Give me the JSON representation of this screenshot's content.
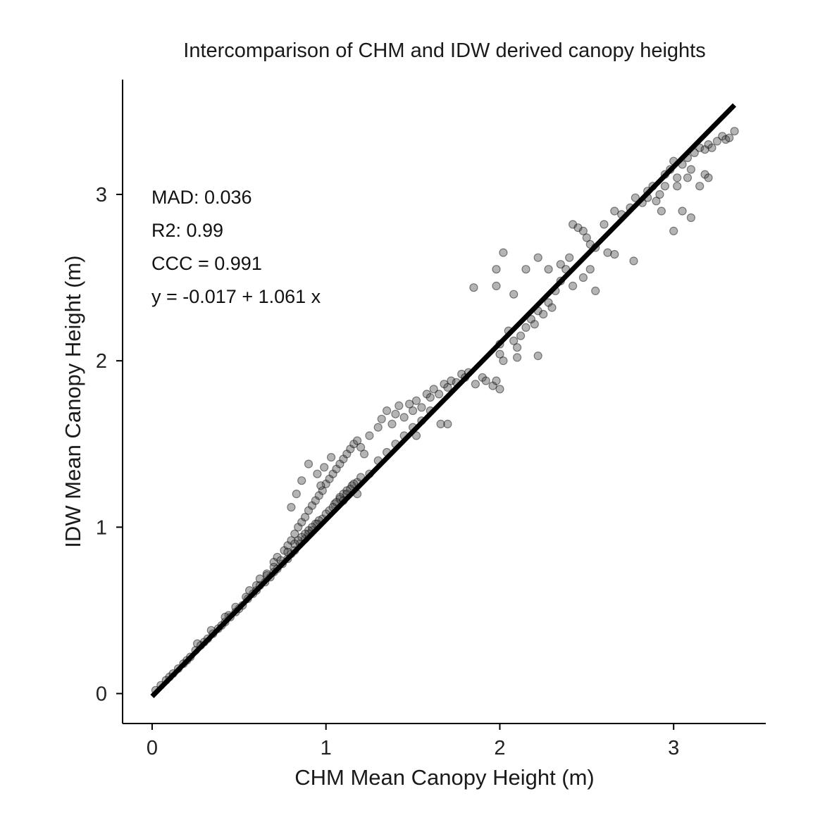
{
  "chart_data": {
    "type": "scatter",
    "title": "Intercomparison of CHM and IDW derived canopy heights",
    "xlabel": "CHM Mean Canopy Height (m)",
    "ylabel": "IDW Mean Canopy Height (m)",
    "xlim": [
      -0.17,
      3.53
    ],
    "ylim": [
      -0.18,
      3.69
    ],
    "xticks": [
      0,
      1,
      2,
      3
    ],
    "yticks": [
      0,
      1,
      2,
      3
    ],
    "xtick_labels": [
      "0",
      "1",
      "2",
      "3"
    ],
    "ytick_labels": [
      "0",
      "1",
      "2",
      "3"
    ],
    "grid": false,
    "annotations": [
      "MAD: 0.036",
      "R2: 0.99",
      "CCC =  0.991",
      "y =  -0.017 + 1.061 x"
    ],
    "fit_line": {
      "intercept": -0.017,
      "slope": 1.061,
      "x_range": [
        0.0,
        3.35
      ]
    },
    "point_color": "#444444",
    "point_opacity": 0.4,
    "line_color": "#000000",
    "points": [
      [
        0.02,
        0.02
      ],
      [
        0.05,
        0.05
      ],
      [
        0.08,
        0.08
      ],
      [
        0.1,
        0.1
      ],
      [
        0.12,
        0.12
      ],
      [
        0.15,
        0.15
      ],
      [
        0.18,
        0.18
      ],
      [
        0.2,
        0.2
      ],
      [
        0.22,
        0.22
      ],
      [
        0.25,
        0.26
      ],
      [
        0.28,
        0.29
      ],
      [
        0.3,
        0.31
      ],
      [
        0.32,
        0.33
      ],
      [
        0.35,
        0.36
      ],
      [
        0.38,
        0.39
      ],
      [
        0.4,
        0.41
      ],
      [
        0.42,
        0.43
      ],
      [
        0.45,
        0.46
      ],
      [
        0.48,
        0.49
      ],
      [
        0.5,
        0.51
      ],
      [
        0.52,
        0.53
      ],
      [
        0.55,
        0.57
      ],
      [
        0.58,
        0.6
      ],
      [
        0.6,
        0.62
      ],
      [
        0.62,
        0.65
      ],
      [
        0.65,
        0.67
      ],
      [
        0.68,
        0.7
      ],
      [
        0.7,
        0.73
      ],
      [
        0.72,
        0.75
      ],
      [
        0.75,
        0.78
      ],
      [
        0.78,
        0.81
      ],
      [
        0.8,
        0.84
      ],
      [
        0.82,
        0.86
      ],
      [
        0.85,
        0.9
      ],
      [
        0.88,
        0.93
      ],
      [
        0.9,
        0.96
      ],
      [
        0.92,
        0.98
      ],
      [
        0.95,
        1.02
      ],
      [
        0.98,
        1.05
      ],
      [
        1.0,
        1.08
      ],
      [
        1.02,
        1.1
      ],
      [
        1.05,
        1.14
      ],
      [
        1.08,
        1.17
      ],
      [
        1.1,
        1.2
      ],
      [
        1.12,
        1.22
      ],
      [
        1.15,
        1.25
      ],
      [
        1.18,
        1.27
      ],
      [
        1.2,
        1.3
      ],
      [
        0.26,
        0.3
      ],
      [
        0.34,
        0.38
      ],
      [
        0.44,
        0.47
      ],
      [
        0.56,
        0.62
      ],
      [
        0.62,
        0.69
      ],
      [
        0.66,
        0.72
      ],
      [
        0.7,
        0.79
      ],
      [
        0.72,
        0.82
      ],
      [
        0.76,
        0.86
      ],
      [
        0.78,
        0.89
      ],
      [
        0.8,
        0.92
      ],
      [
        0.82,
        0.96
      ],
      [
        0.84,
        1.0
      ],
      [
        0.86,
        1.03
      ],
      [
        0.88,
        1.06
      ],
      [
        0.9,
        1.1
      ],
      [
        0.92,
        1.13
      ],
      [
        0.94,
        1.16
      ],
      [
        0.96,
        1.19
      ],
      [
        0.98,
        1.22
      ],
      [
        1.0,
        1.26
      ],
      [
        1.02,
        1.29
      ],
      [
        1.04,
        1.32
      ],
      [
        1.06,
        1.35
      ],
      [
        1.08,
        1.38
      ],
      [
        1.1,
        1.41
      ],
      [
        1.12,
        1.44
      ],
      [
        1.14,
        1.47
      ],
      [
        1.16,
        1.5
      ],
      [
        1.18,
        1.52
      ],
      [
        1.2,
        1.48
      ],
      [
        1.22,
        1.44
      ],
      [
        0.8,
        1.12
      ],
      [
        0.83,
        1.2
      ],
      [
        0.86,
        1.28
      ],
      [
        0.9,
        1.38
      ],
      [
        0.95,
        1.32
      ],
      [
        0.97,
        1.25
      ],
      [
        0.99,
        1.36
      ],
      [
        1.03,
        1.42
      ],
      [
        1.25,
        1.55
      ],
      [
        1.3,
        1.6
      ],
      [
        1.32,
        1.65
      ],
      [
        1.35,
        1.7
      ],
      [
        1.38,
        1.62
      ],
      [
        1.4,
        1.68
      ],
      [
        1.42,
        1.73
      ],
      [
        1.45,
        1.66
      ],
      [
        1.48,
        1.74
      ],
      [
        1.5,
        1.7
      ],
      [
        1.52,
        1.76
      ],
      [
        1.55,
        1.72
      ],
      [
        1.58,
        1.8
      ],
      [
        1.6,
        1.78
      ],
      [
        1.62,
        1.83
      ],
      [
        1.65,
        1.8
      ],
      [
        1.68,
        1.86
      ],
      [
        1.7,
        1.84
      ],
      [
        1.72,
        1.88
      ],
      [
        1.75,
        1.87
      ],
      [
        1.78,
        1.92
      ],
      [
        1.8,
        1.9
      ],
      [
        1.82,
        1.93
      ],
      [
        1.25,
        1.32
      ],
      [
        1.3,
        1.4
      ],
      [
        1.35,
        1.45
      ],
      [
        1.4,
        1.5
      ],
      [
        1.45,
        1.55
      ],
      [
        1.5,
        1.6
      ],
      [
        1.55,
        1.64
      ],
      [
        1.6,
        1.7
      ],
      [
        1.66,
        1.62
      ],
      [
        1.7,
        1.62
      ],
      [
        1.52,
        1.55
      ],
      [
        1.85,
        2.44
      ],
      [
        1.86,
        1.86
      ],
      [
        1.9,
        1.9
      ],
      [
        1.92,
        1.88
      ],
      [
        1.96,
        1.85
      ],
      [
        1.98,
        2.55
      ],
      [
        2.0,
        2.1
      ],
      [
        2.0,
        2.04
      ],
      [
        2.02,
        2.0
      ],
      [
        2.05,
        2.18
      ],
      [
        2.08,
        2.12
      ],
      [
        2.1,
        2.08
      ],
      [
        2.12,
        2.15
      ],
      [
        2.15,
        2.2
      ],
      [
        2.18,
        2.25
      ],
      [
        2.2,
        2.22
      ],
      [
        2.22,
        2.3
      ],
      [
        2.25,
        2.28
      ],
      [
        2.28,
        2.35
      ],
      [
        2.3,
        2.32
      ],
      [
        2.32,
        2.42
      ],
      [
        2.35,
        2.48
      ],
      [
        2.38,
        2.55
      ],
      [
        2.4,
        2.62
      ],
      [
        2.42,
        2.82
      ],
      [
        2.45,
        2.8
      ],
      [
        2.48,
        2.78
      ],
      [
        2.5,
        2.74
      ],
      [
        2.52,
        2.7
      ],
      [
        2.55,
        2.68
      ],
      [
        1.98,
        2.45
      ],
      [
        2.02,
        2.65
      ],
      [
        2.08,
        2.4
      ],
      [
        2.15,
        2.55
      ],
      [
        2.22,
        2.62
      ],
      [
        2.28,
        2.55
      ],
      [
        2.35,
        2.58
      ],
      [
        2.42,
        2.45
      ],
      [
        2.48,
        2.5
      ],
      [
        2.52,
        2.55
      ],
      [
        2.6,
        2.82
      ],
      [
        2.62,
        2.65
      ],
      [
        2.66,
        2.9
      ],
      [
        2.7,
        2.88
      ],
      [
        2.75,
        2.92
      ],
      [
        2.78,
        2.98
      ],
      [
        2.82,
        2.95
      ],
      [
        2.85,
        3.02
      ],
      [
        2.88,
        3.05
      ],
      [
        2.9,
        2.96
      ],
      [
        2.92,
        3.0
      ],
      [
        2.95,
        3.12
      ],
      [
        2.98,
        3.15
      ],
      [
        3.0,
        3.2
      ],
      [
        3.02,
        3.1
      ],
      [
        3.05,
        3.18
      ],
      [
        3.08,
        3.22
      ],
      [
        3.1,
        3.15
      ],
      [
        3.12,
        3.25
      ],
      [
        3.15,
        3.28
      ],
      [
        3.18,
        3.27
      ],
      [
        3.2,
        3.3
      ],
      [
        3.22,
        3.28
      ],
      [
        3.25,
        3.32
      ],
      [
        3.28,
        3.35
      ],
      [
        3.3,
        3.33
      ],
      [
        3.32,
        3.34
      ],
      [
        3.35,
        3.38
      ],
      [
        2.77,
        2.6
      ],
      [
        2.66,
        2.64
      ],
      [
        2.55,
        2.42
      ],
      [
        2.1,
        2.02
      ],
      [
        1.98,
        1.88
      ],
      [
        2.0,
        1.83
      ],
      [
        2.22,
        2.03
      ],
      [
        2.85,
        2.98
      ],
      [
        2.93,
        2.9
      ],
      [
        3.0,
        2.78
      ],
      [
        3.05,
        2.9
      ],
      [
        3.1,
        2.86
      ],
      [
        3.15,
        3.05
      ],
      [
        3.18,
        3.12
      ],
      [
        3.2,
        3.1
      ],
      [
        2.95,
        3.05
      ],
      [
        3.02,
        3.05
      ],
      [
        3.08,
        3.1
      ],
      [
        1.08,
        1.18
      ],
      [
        1.1,
        1.16
      ],
      [
        1.12,
        1.2
      ],
      [
        1.14,
        1.23
      ],
      [
        1.16,
        1.26
      ],
      [
        1.06,
        1.15
      ],
      [
        1.04,
        1.12
      ],
      [
        1.18,
        1.2
      ],
      [
        0.96,
        1.04
      ],
      [
        0.94,
        1.02
      ],
      [
        0.92,
        1.0
      ],
      [
        0.9,
        0.98
      ],
      [
        0.88,
        0.96
      ],
      [
        0.86,
        0.94
      ],
      [
        0.84,
        0.92
      ],
      [
        0.82,
        0.9
      ],
      [
        0.78,
        0.85
      ],
      [
        0.74,
        0.8
      ],
      [
        0.7,
        0.76
      ],
      [
        0.66,
        0.71
      ],
      [
        0.6,
        0.65
      ],
      [
        0.54,
        0.58
      ],
      [
        0.48,
        0.52
      ],
      [
        0.42,
        0.46
      ]
    ]
  }
}
